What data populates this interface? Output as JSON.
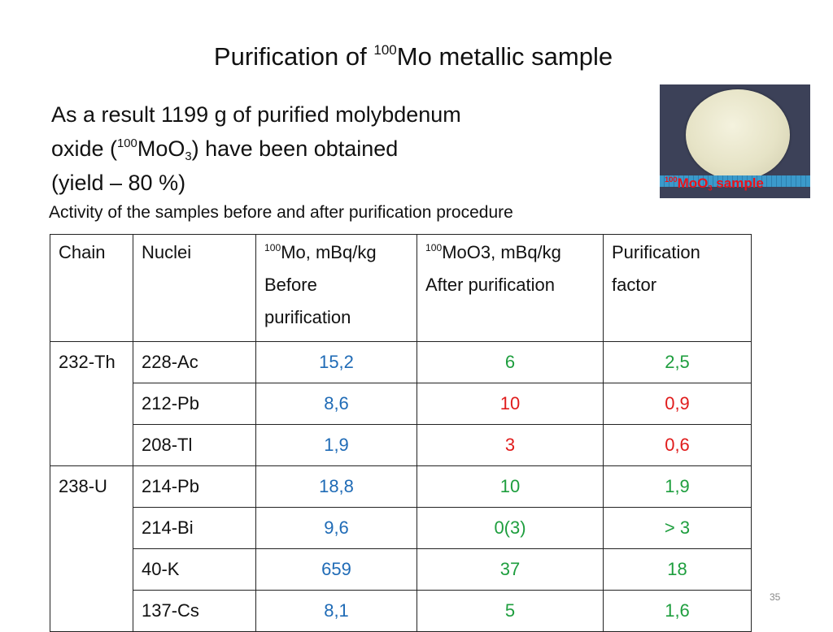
{
  "title": {
    "prefix": "Purification of ",
    "isotope": "100",
    "rest": "Mo metallic sample"
  },
  "result": {
    "line1": "As a result 1199 g of purified molybdenum",
    "line2_prefix": "oxide (",
    "line2_sup": "100",
    "line2_mid": "MoO",
    "line2_sub": "3",
    "line2_suffix": ") have been obtained",
    "line3": "(yield – 80 %)"
  },
  "photo": {
    "caption_sup": "100",
    "caption_main": "MoO",
    "caption_sub": "3",
    "caption_tail": " sample"
  },
  "subtitle": "Activity of the samples before and after purification procedure",
  "table": {
    "headers": {
      "chain": "Chain",
      "nuclei": "Nuclei",
      "before_sup": "100",
      "before_l1": "Mo, mBq/kg",
      "before_l2": "Before",
      "before_l3": "purification",
      "after_sup": "100",
      "after_l1": "MoO3, mBq/kg",
      "after_l2": "After purification",
      "factor_l1": "Purification",
      "factor_l2": "factor"
    },
    "rows": [
      {
        "chain": "232-Th",
        "nucleus": "228-Ac",
        "before": "15,2",
        "after": "6",
        "factor": "2,5"
      },
      {
        "chain": "",
        "nucleus": "212-Pb",
        "before": "8,6",
        "after": "10",
        "factor": "0,9"
      },
      {
        "chain": "",
        "nucleus": "208-Tl",
        "before": "1,9",
        "after": "3",
        "factor": "0,6"
      },
      {
        "chain": "238-U",
        "nucleus": "214-Pb",
        "before": "18,8",
        "after": "10",
        "factor": "1,9"
      },
      {
        "chain": "",
        "nucleus": "214-Bi",
        "before": "9,6",
        "after": "0(3)",
        "factor": "> 3"
      },
      {
        "chain": "",
        "nucleus": "40-K",
        "before": "659",
        "after": "37",
        "factor": "18"
      },
      {
        "chain": "",
        "nucleus": "137-Cs",
        "before": "8,1",
        "after": "5",
        "factor": "1,6"
      }
    ]
  },
  "colors": {
    "before": "#1f6bb6",
    "good": "#1e9e3e",
    "bad": "#e01b1b"
  },
  "page_number": "35"
}
